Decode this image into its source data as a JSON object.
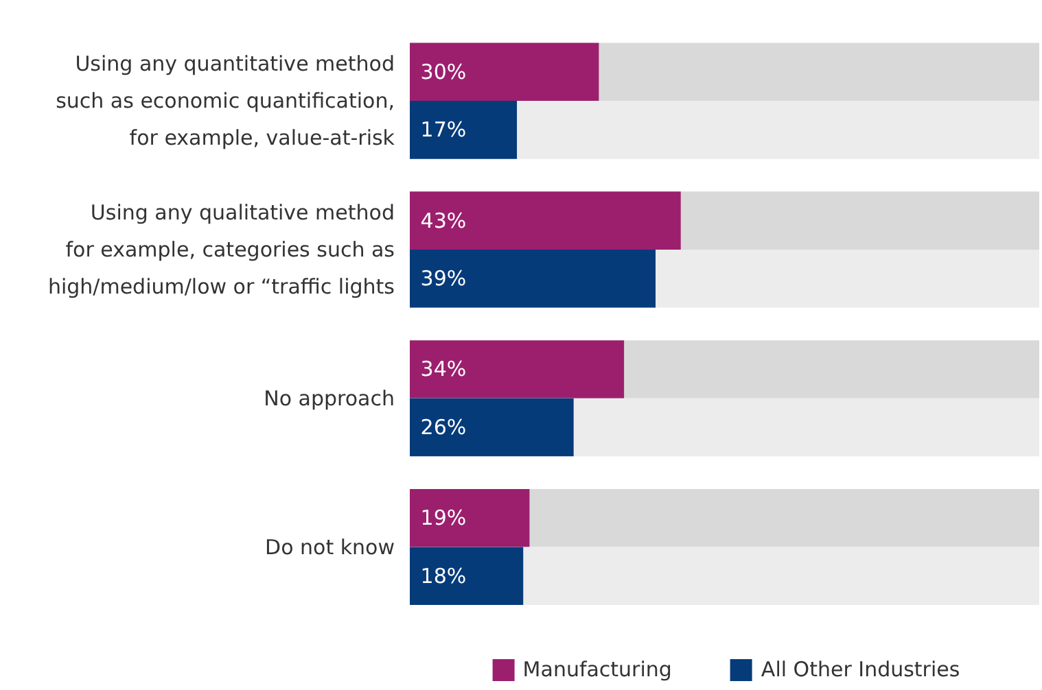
{
  "chart_data": {
    "type": "bar",
    "orientation": "horizontal",
    "categories": [
      "Using any quantitative method\nsuch as economic quantification,\nfor example, value-at-risk",
      "Using any qualitative method\nfor example, categories such as\nhigh/medium/low or “traffic lights",
      "No approach",
      "Do not know"
    ],
    "series": [
      {
        "name": "Manufacturing",
        "color": "#9c1f6e",
        "values": [
          30,
          43,
          34,
          19
        ],
        "value_labels": [
          "30%",
          "43%",
          "34%",
          "19%"
        ]
      },
      {
        "name": "All Other Industries",
        "color": "#063b7a",
        "values": [
          17,
          39,
          26,
          18
        ],
        "value_labels": [
          "17%",
          "39%",
          "26%",
          "18%"
        ]
      }
    ],
    "xlim": [
      0,
      100
    ],
    "tick_labels": "y",
    "grid": false,
    "legend": "bottom"
  }
}
